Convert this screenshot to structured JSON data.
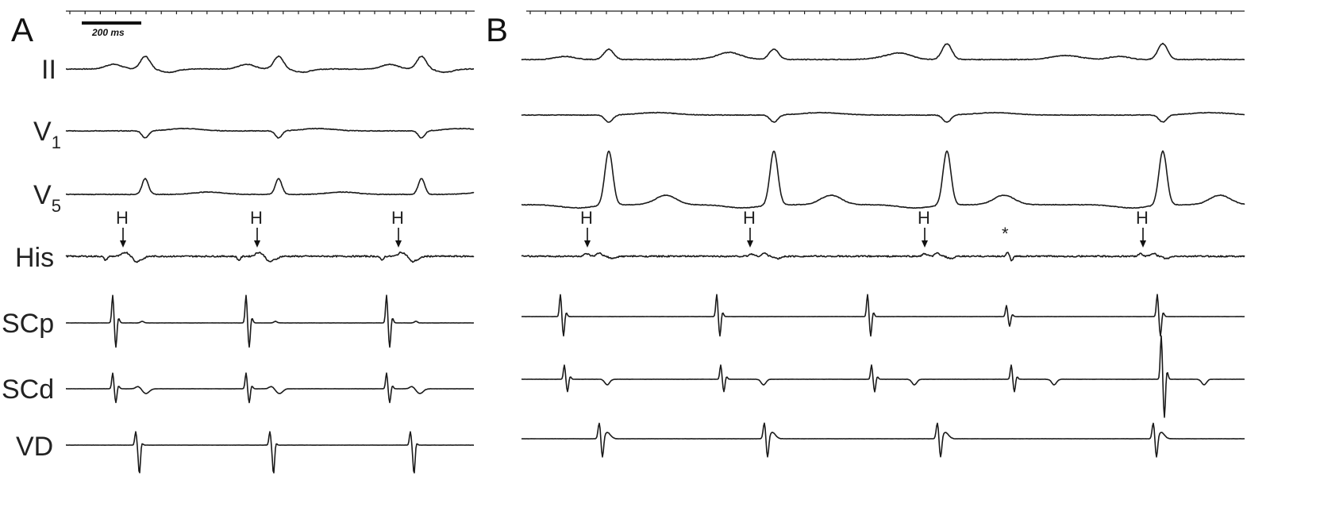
{
  "panels": [
    {
      "letter": "A",
      "scale_bar_label": "200 ms",
      "channels": [
        "II",
        "V",
        "V",
        "His",
        "SCp",
        "SCd",
        "VD"
      ],
      "channel_subscripts": [
        "",
        "1",
        "5",
        "",
        "",
        "",
        ""
      ],
      "his_marker": "H",
      "his_marker_count": 3
    },
    {
      "letter": "B",
      "channels": [
        "II",
        "V1",
        "V5",
        "His",
        "SCp",
        "SCd",
        "VD"
      ],
      "his_marker": "H",
      "his_marker_count": 4,
      "extra_marker": "*"
    }
  ],
  "colors": {
    "trace": "#1a1a1a",
    "background": "#ffffff"
  }
}
